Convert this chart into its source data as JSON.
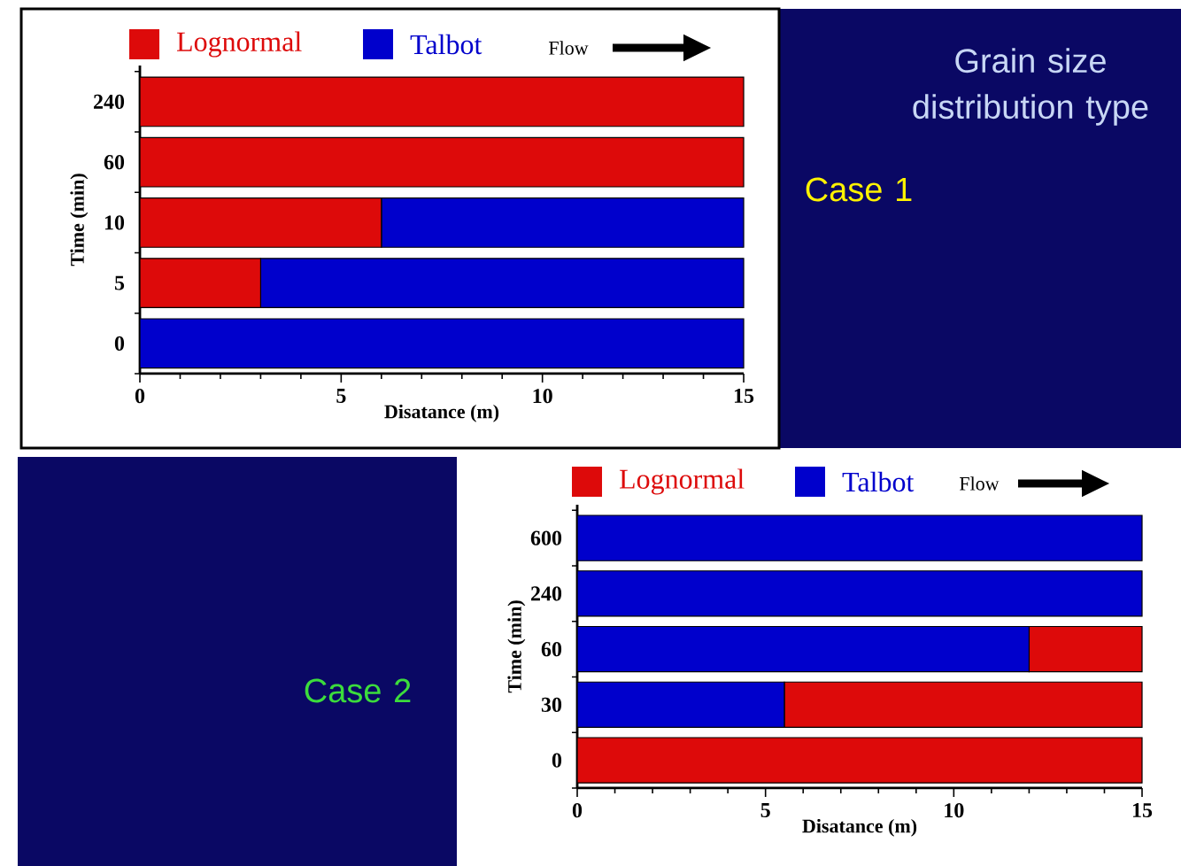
{
  "chart_data": [
    {
      "type": "bar",
      "orientation": "horizontal",
      "stacked": true,
      "categories": [
        "240",
        "60",
        "10",
        "5",
        "0"
      ],
      "xlabel": "Disatance (m)",
      "ylabel": "Time (min)",
      "xlim": [
        0,
        15
      ],
      "xticks": [
        0,
        5,
        10,
        15
      ],
      "legend": "top",
      "series": [
        {
          "name": "Lognormal",
          "color": "#dd0a0a",
          "values": [
            15,
            15,
            6,
            3,
            0
          ]
        },
        {
          "name": "Talbot",
          "color": "#0000cc",
          "values": [
            0,
            0,
            9,
            12,
            15
          ]
        }
      ],
      "annotations": [
        "Flow",
        "Grain size distribution type",
        "Case 1"
      ]
    },
    {
      "type": "bar",
      "orientation": "horizontal",
      "stacked": true,
      "categories": [
        "600",
        "240",
        "60",
        "30",
        "0"
      ],
      "xlabel": "Disatance (m)",
      "ylabel": "Time (min)",
      "xlim": [
        0,
        15
      ],
      "xticks": [
        0,
        5,
        10,
        15
      ],
      "legend": "top",
      "series": [
        {
          "name": "Talbot",
          "color": "#0000cc",
          "values": [
            15,
            15,
            12,
            5.5,
            0
          ]
        },
        {
          "name": "Lognormal",
          "color": "#dd0a0a",
          "values": [
            0,
            0,
            3,
            9.5,
            15
          ]
        }
      ],
      "annotations": [
        "Flow",
        "Case 2"
      ]
    }
  ]
}
